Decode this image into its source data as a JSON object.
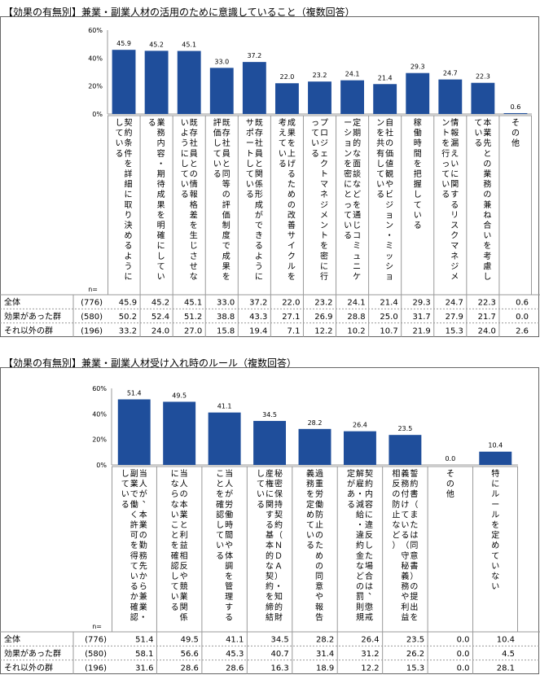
{
  "colors": {
    "bar": "#1F4E9B",
    "border": "#666666",
    "grid": "#999999"
  },
  "chart_data": [
    {
      "type": "bar",
      "title": "【効果の有無別】兼業・副業人材の活用のために意識していること（複数回答）",
      "yticks": [
        "60%",
        "40%",
        "20%",
        "0%"
      ],
      "ylim": [
        0,
        60
      ],
      "n_label": "n=",
      "categories": [
        "契約条件を詳細に取り決めるようにしている",
        "業務内容・期待成果を明確にしている",
        "既存社員との情報格差を生じさせないようにしている",
        "既存社員と同等の評価制度で成果を評価している",
        "既存社員と関係形成ができるようにサポートしている",
        "成果を上げるための改善サイクルを考えている",
        "プロジェクトマネジメントを密に行っている",
        "定期的な面談などを通じコミュニケーションを密にとっている",
        "自社の価値観やビジョン・ミッションを共有している",
        "稼働時間を把握している",
        "情報漏えいに関するリスクマネジメントを行っている",
        "本業先との業務の兼ね合いを考慮している",
        "その他"
      ],
      "values": [
        45.9,
        45.2,
        45.1,
        33.0,
        37.2,
        22.0,
        23.2,
        24.1,
        21.4,
        29.3,
        24.7,
        22.3,
        0.6
      ],
      "value_labels": [
        "45.9",
        "45.2",
        "45.1",
        "33.0",
        "37.2",
        "22.0",
        "23.2",
        "24.1",
        "21.4",
        "29.3",
        "24.7",
        "22.3",
        "0.6"
      ],
      "table": [
        {
          "group": "全体",
          "n": "(776)",
          "cells": [
            "45.9",
            "45.2",
            "45.1",
            "33.0",
            "37.2",
            "22.0",
            "23.2",
            "24.1",
            "21.4",
            "29.3",
            "24.7",
            "22.3",
            "0.6"
          ]
        },
        {
          "group": "効果があった群",
          "n": "(580)",
          "cells": [
            "50.2",
            "52.4",
            "51.2",
            "38.8",
            "43.3",
            "27.1",
            "26.9",
            "28.8",
            "25.0",
            "31.7",
            "27.9",
            "21.7",
            "0.0"
          ]
        },
        {
          "group": "それ以外の群",
          "n": "(196)",
          "cells": [
            "33.2",
            "24.0",
            "27.0",
            "15.8",
            "19.4",
            "7.1",
            "12.2",
            "10.2",
            "10.7",
            "21.9",
            "15.3",
            "24.0",
            "2.6"
          ]
        }
      ]
    },
    {
      "type": "bar",
      "title": "【効果の有無別】兼業・副業人材受け入れ時のルール（複数回答）",
      "yticks": [
        "60%",
        "40%",
        "20%",
        "0%"
      ],
      "ylim": [
        0,
        60
      ],
      "n_label": "n=",
      "categories": [
        "当人が、本業の勤務先から兼業・副業で働く許可を得ているか確認している",
        "当人の本業と利益相反や競業関係にならないことを確認している",
        "当人が労働時間や体調を管理することを確認している",
        "秘密保持契約（ＮＤＡ）・知的財産権に関する基本的な契約を締結している",
        "過重労働防止のための同意や報告義務を定めている",
        "契約内容に違反した場合は、懲戒解雇・減給・違約金などの罰則規定がある",
        "誓約書（または同意書）の提出を義務付けている（守秘義務や利益相反の防止など）",
        "その他",
        "特にルールを定めていない"
      ],
      "values": [
        51.4,
        49.5,
        41.1,
        34.5,
        28.2,
        26.4,
        23.5,
        0.0,
        10.4
      ],
      "value_labels": [
        "51.4",
        "49.5",
        "41.1",
        "34.5",
        "28.2",
        "26.4",
        "23.5",
        "0.0",
        "10.4"
      ],
      "table": [
        {
          "group": "全体",
          "n": "(776)",
          "cells": [
            "51.4",
            "49.5",
            "41.1",
            "34.5",
            "28.2",
            "26.4",
            "23.5",
            "0.0",
            "10.4"
          ]
        },
        {
          "group": "効果があった群",
          "n": "(580)",
          "cells": [
            "58.1",
            "56.6",
            "45.3",
            "40.7",
            "31.4",
            "31.2",
            "26.2",
            "0.0",
            "4.5"
          ]
        },
        {
          "group": "それ以外の群",
          "n": "(196)",
          "cells": [
            "31.6",
            "28.6",
            "28.6",
            "16.3",
            "18.9",
            "12.2",
            "15.3",
            "0.0",
            "28.1"
          ]
        }
      ]
    }
  ]
}
